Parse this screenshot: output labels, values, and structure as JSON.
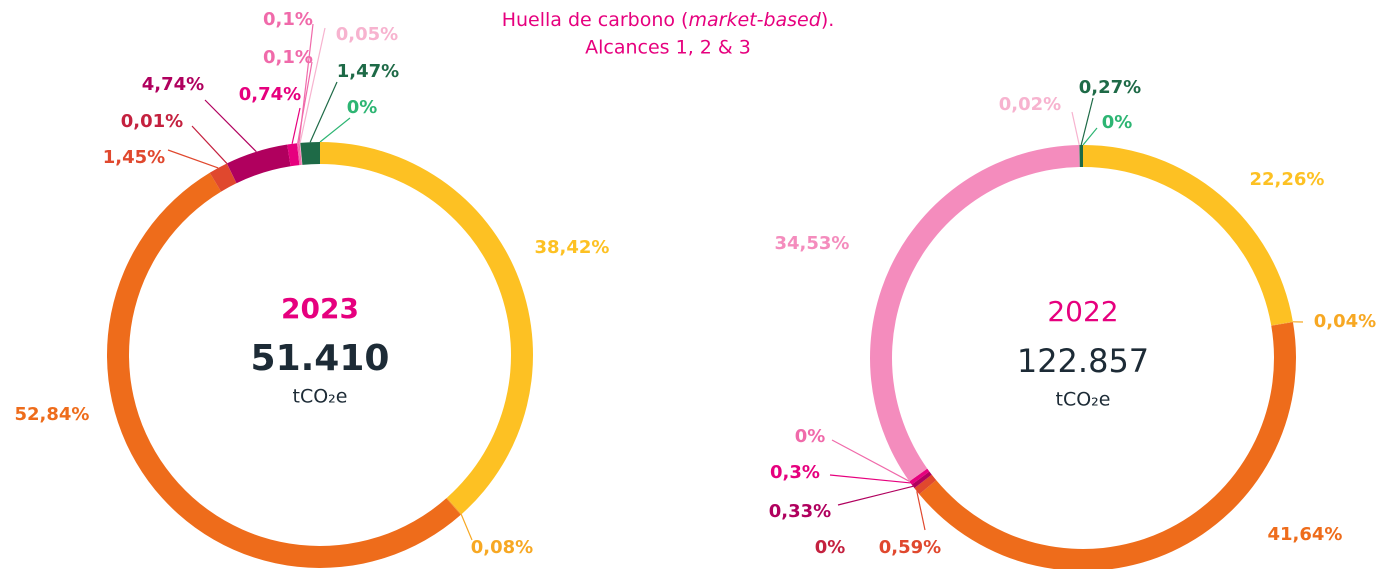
{
  "title": {
    "before": "Huella de carbono (",
    "italic": "market-based",
    "after": ").",
    "line2": "Alcances 1, 2 & 3"
  },
  "chart_data": [
    {
      "type": "donut",
      "center": {
        "year": "2023",
        "total": {
          "value": 51410,
          "label": "51.410"
        },
        "unit": "tCO₂e"
      },
      "values": [
        0,
        38.42,
        0.08,
        52.84,
        1.45,
        0.01,
        4.74,
        0.74,
        0.1,
        0.1,
        0.05,
        1.47
      ],
      "value_labels": [
        "0%",
        "38,42%",
        "0,08%",
        "52,84%",
        "1,45%",
        "0,01%",
        "4,74%",
        "0,74%",
        "0,1%",
        "0,1%",
        "0,05%",
        "1,47%"
      ],
      "colors": [
        "#2db573",
        "#fdc123",
        "#f7a823",
        "#ee6c1b",
        "#e0482e",
        "#c4213f",
        "#b0005e",
        "#e6007e",
        "#f06aaa",
        "#f06aaa",
        "#f7b3cf",
        "#1e6a47"
      ]
    },
    {
      "type": "donut",
      "center": {
        "year": "2022",
        "total": {
          "value": 122857,
          "label": "122.857"
        },
        "unit": "tCO₂e"
      },
      "values": [
        0,
        22.26,
        0.04,
        41.64,
        0.59,
        0,
        0.33,
        0.3,
        0,
        34.53,
        0.02,
        0.27
      ],
      "value_labels": [
        "0%",
        "22,26%",
        "0,04%",
        "41,64%",
        "0,59%",
        "0%",
        "0,33%",
        "0,3%",
        "0%",
        "34,53%",
        "0,02%",
        "0,27%"
      ],
      "colors": [
        "#2db573",
        "#fdc123",
        "#f7a823",
        "#ee6c1b",
        "#e0482e",
        "#c4213f",
        "#b0005e",
        "#e6007e",
        "#f06aaa",
        "#f48cbd",
        "#f7b3cf",
        "#1e6a47"
      ]
    }
  ]
}
